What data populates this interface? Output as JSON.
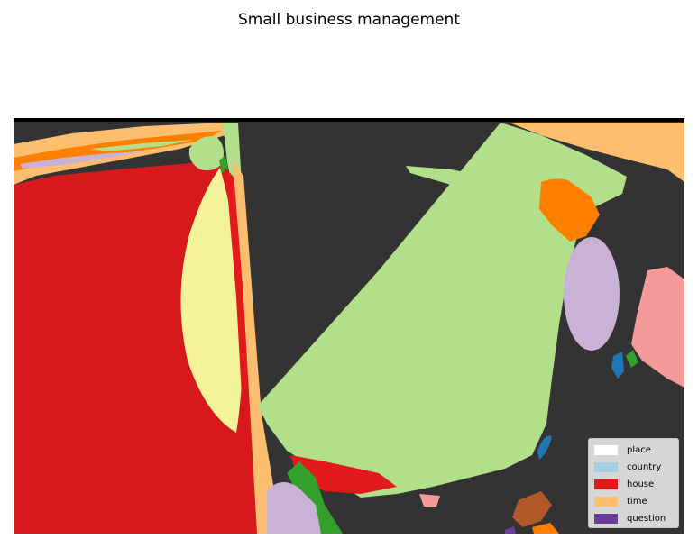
{
  "chart_data": {
    "type": "heatmap",
    "title": "Small business management",
    "legend": {
      "placement": "bottom-right",
      "entries": [
        {
          "label": "place",
          "color": "#ffffff"
        },
        {
          "label": "country",
          "color": "#a6cee3"
        },
        {
          "label": "house",
          "color": "#e31a1c"
        },
        {
          "label": "time",
          "color": "#fdbf6f"
        },
        {
          "label": "question",
          "color": "#6a3d9a"
        }
      ]
    },
    "colors": {
      "background": "#333333",
      "light_green": "#b2df8a",
      "dark_green": "#33a02c",
      "red": "#e31a1c",
      "yellow": "#f4f39a",
      "orange": "#ff7f00",
      "light_orange": "#fdbf6f",
      "lilac": "#cab2d6",
      "pink": "#fb9a99",
      "blue": "#1f78b4",
      "brown": "#b15928",
      "purple": "#6a3d9a"
    }
  }
}
